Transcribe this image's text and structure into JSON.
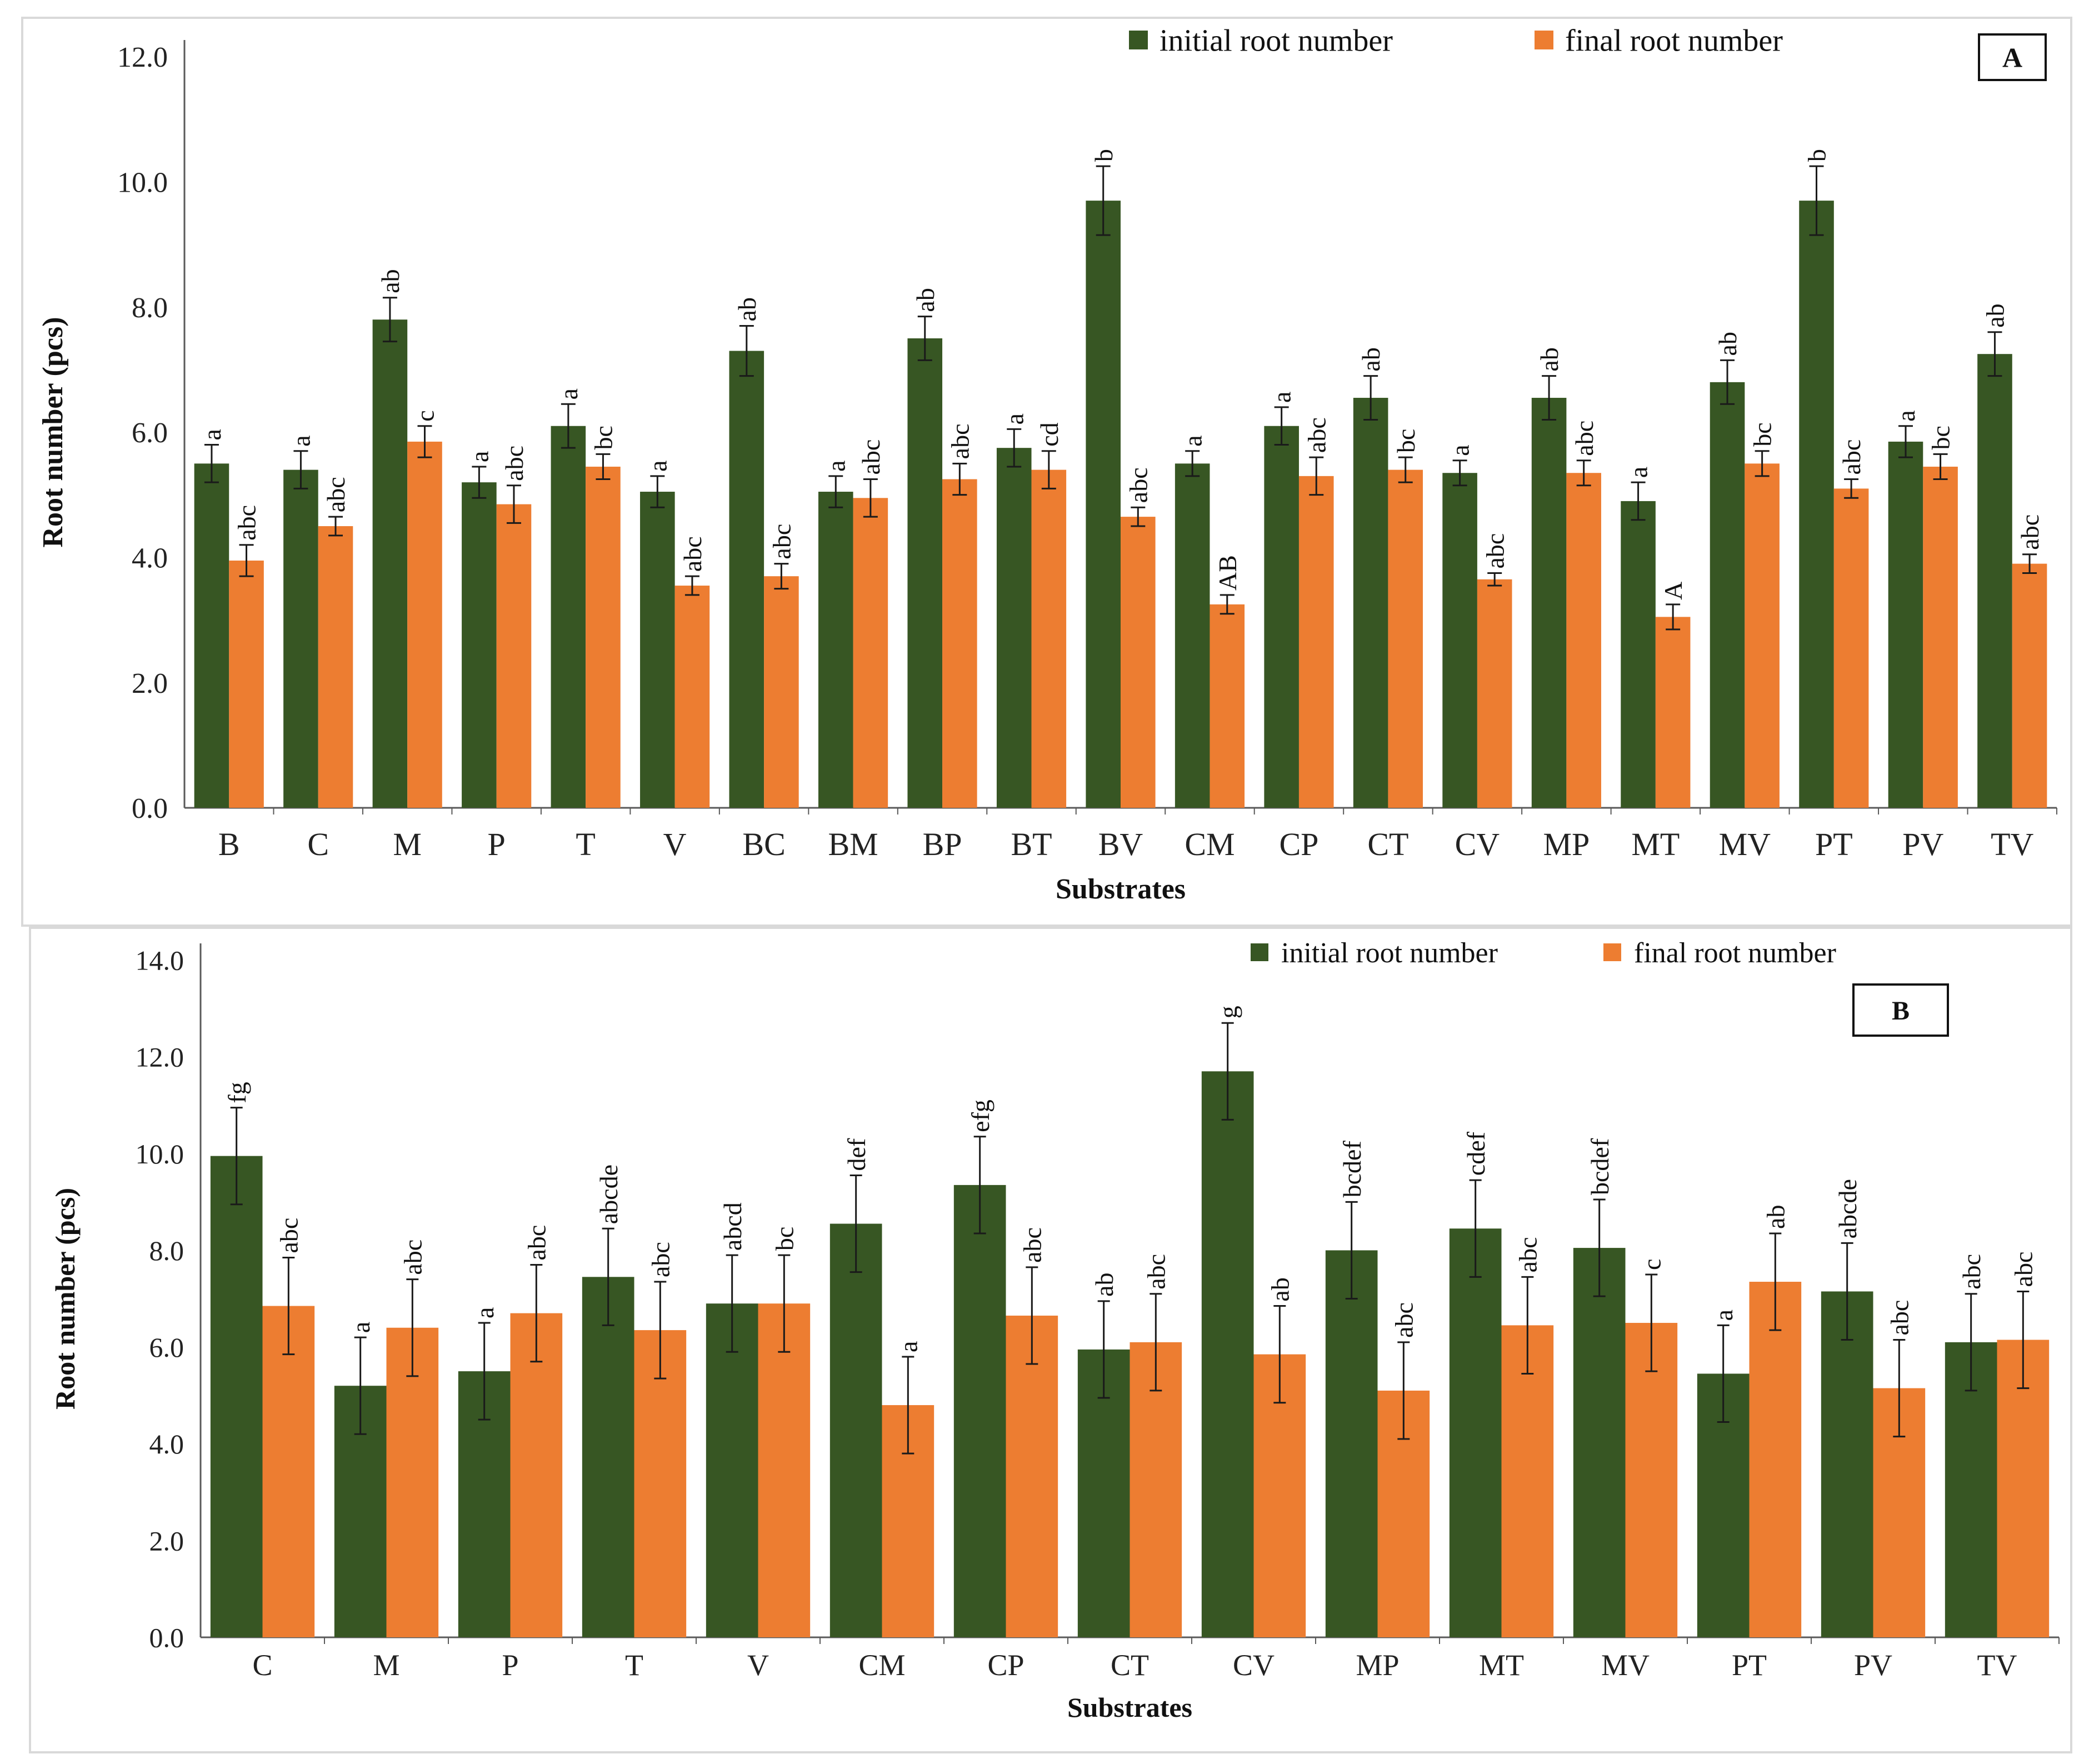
{
  "colors": {
    "initial": "#375623",
    "final": "#ED7D31",
    "axis": "#595959",
    "error": "#1a1a1a"
  },
  "chart_data": [
    {
      "panel": "A",
      "type": "bar",
      "xlabel": "Substrates",
      "ylabel": "Root number (pcs)",
      "ylim": [
        0,
        12
      ],
      "yticks": [
        "0.0",
        "2.0",
        "4.0",
        "6.0",
        "8.0",
        "10.0",
        "12.0"
      ],
      "legend": [
        "initial root number",
        "final root number"
      ],
      "legend_position": "top-right",
      "categories": [
        "B",
        "C",
        "M",
        "P",
        "T",
        "V",
        "BC",
        "BM",
        "BP",
        "BT",
        "BV",
        "CM",
        "CP",
        "CT",
        "CV",
        "MP",
        "MT",
        "MV",
        "PT",
        "PV",
        "TV"
      ],
      "series": [
        {
          "name": "initial root number",
          "values": [
            5.5,
            5.4,
            7.8,
            5.2,
            6.1,
            5.05,
            7.3,
            5.05,
            7.5,
            5.75,
            9.7,
            5.5,
            6.1,
            6.55,
            5.35,
            6.55,
            4.9,
            6.8,
            9.7,
            5.85,
            7.25
          ],
          "errors": [
            0.3,
            0.3,
            0.35,
            0.25,
            0.35,
            0.25,
            0.4,
            0.25,
            0.35,
            0.3,
            0.55,
            0.2,
            0.3,
            0.35,
            0.2,
            0.35,
            0.3,
            0.35,
            0.55,
            0.25,
            0.35
          ],
          "letters": [
            "a",
            "a",
            "ab",
            "a",
            "a",
            "a",
            "ab",
            "a",
            "ab",
            "a",
            "b",
            "a",
            "a",
            "ab",
            "a",
            "ab",
            "a",
            "ab",
            "b",
            "a",
            "ab"
          ]
        },
        {
          "name": "final root number",
          "values": [
            3.95,
            4.5,
            5.85,
            4.85,
            5.45,
            3.55,
            3.7,
            4.95,
            5.25,
            5.4,
            4.65,
            3.25,
            5.3,
            5.4,
            3.65,
            5.35,
            3.05,
            5.5,
            5.1,
            5.45,
            3.9
          ],
          "errors": [
            0.25,
            0.15,
            0.25,
            0.3,
            0.2,
            0.15,
            0.2,
            0.3,
            0.25,
            0.3,
            0.15,
            0.15,
            0.3,
            0.2,
            0.1,
            0.2,
            0.2,
            0.2,
            0.15,
            0.2,
            0.15
          ],
          "letters": [
            "abc",
            "abc",
            "c",
            "abc",
            "bc",
            "abc",
            "abc",
            "abc",
            "abc",
            "cd",
            "abc",
            "AB",
            "abc",
            "bc",
            "abc",
            "abc",
            "A",
            "bc",
            "abc",
            "bc",
            "abc"
          ]
        }
      ]
    },
    {
      "panel": "B",
      "type": "bar",
      "xlabel": "Substrates",
      "ylabel": "Root number (pcs)",
      "ylim": [
        0,
        14
      ],
      "yticks": [
        "0.0",
        "2.0",
        "4.0",
        "6.0",
        "8.0",
        "10.0",
        "12.0",
        "14.0"
      ],
      "legend": [
        "initial root number",
        "final root number"
      ],
      "legend_position": "top-right",
      "categories": [
        "C",
        "M",
        "P",
        "T",
        "V",
        "CM",
        "CP",
        "CT",
        "CV",
        "MP",
        "MT",
        "MV",
        "PT",
        "PV",
        "TV"
      ],
      "series": [
        {
          "name": "initial root number",
          "values": [
            9.95,
            5.2,
            5.5,
            7.45,
            6.9,
            8.55,
            9.35,
            5.95,
            11.7,
            8.0,
            8.45,
            8.05,
            5.45,
            7.15,
            6.1
          ],
          "errors": [
            1.0,
            1.0,
            1.0,
            1.0,
            1.0,
            1.0,
            1.0,
            1.0,
            1.0,
            1.0,
            1.0,
            1.0,
            1.0,
            1.0,
            1.0
          ],
          "letters": [
            "fg",
            "a",
            "a",
            "abcde",
            "abcd",
            "def",
            "efg",
            "ab",
            "g",
            "bcdef",
            "cdef",
            "bcdef",
            "a",
            "abcde",
            "abc"
          ]
        },
        {
          "name": "final root number",
          "values": [
            6.85,
            6.4,
            6.7,
            6.35,
            6.9,
            4.8,
            6.65,
            6.1,
            5.85,
            5.1,
            6.45,
            6.5,
            7.35,
            5.15,
            6.15
          ],
          "errors": [
            1.0,
            1.0,
            1.0,
            1.0,
            1.0,
            1.0,
            1.0,
            1.0,
            1.0,
            1.0,
            1.0,
            1.0,
            1.0,
            1.0,
            1.0
          ],
          "letters": [
            "abc",
            "abc",
            "abc",
            "abc",
            "bc",
            "a",
            "abc",
            "abc",
            "ab",
            "abc",
            "abc",
            "c",
            "ab",
            "abc",
            "abc"
          ]
        }
      ]
    }
  ]
}
